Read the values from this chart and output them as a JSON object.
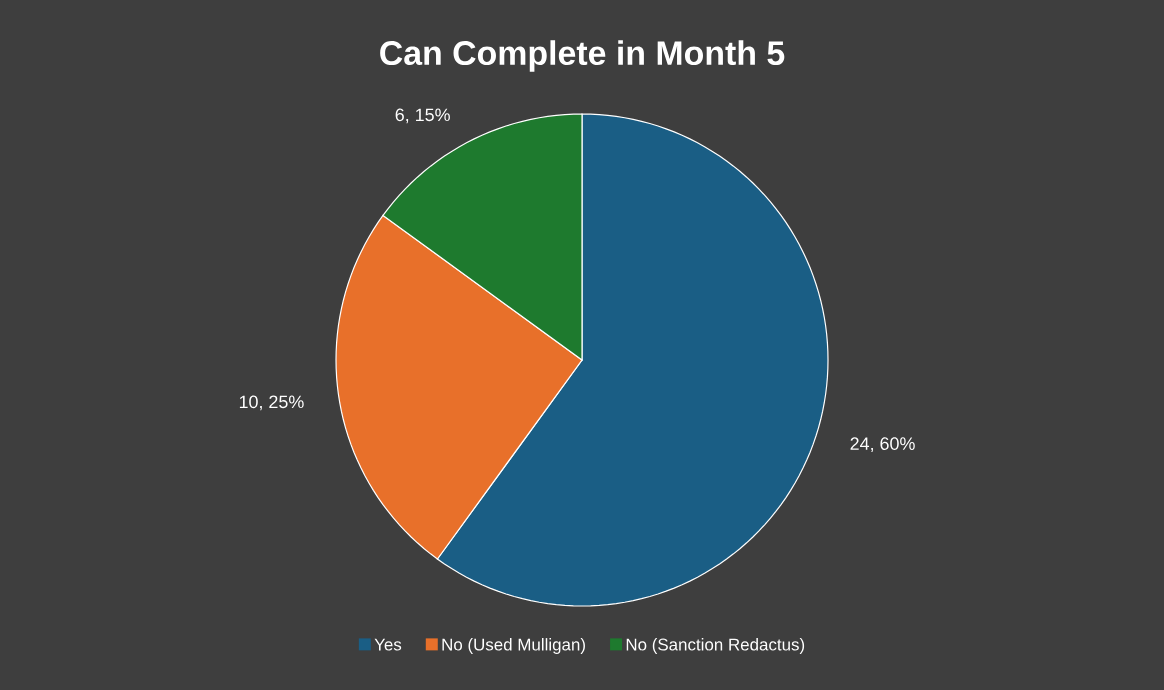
{
  "chart_data": {
    "type": "pie",
    "title": "Can Complete in Month 5",
    "categories": [
      "Yes",
      "No (Used Mulligan)",
      "No (Sanction Redactus)"
    ],
    "values": [
      24,
      10,
      6
    ],
    "colors": [
      "#1a5e85",
      "#e8702a",
      "#1e7a2e"
    ],
    "value_labels": [
      "24, 60%",
      "10, 25%",
      "6, 15%"
    ],
    "legend": "bottom"
  }
}
